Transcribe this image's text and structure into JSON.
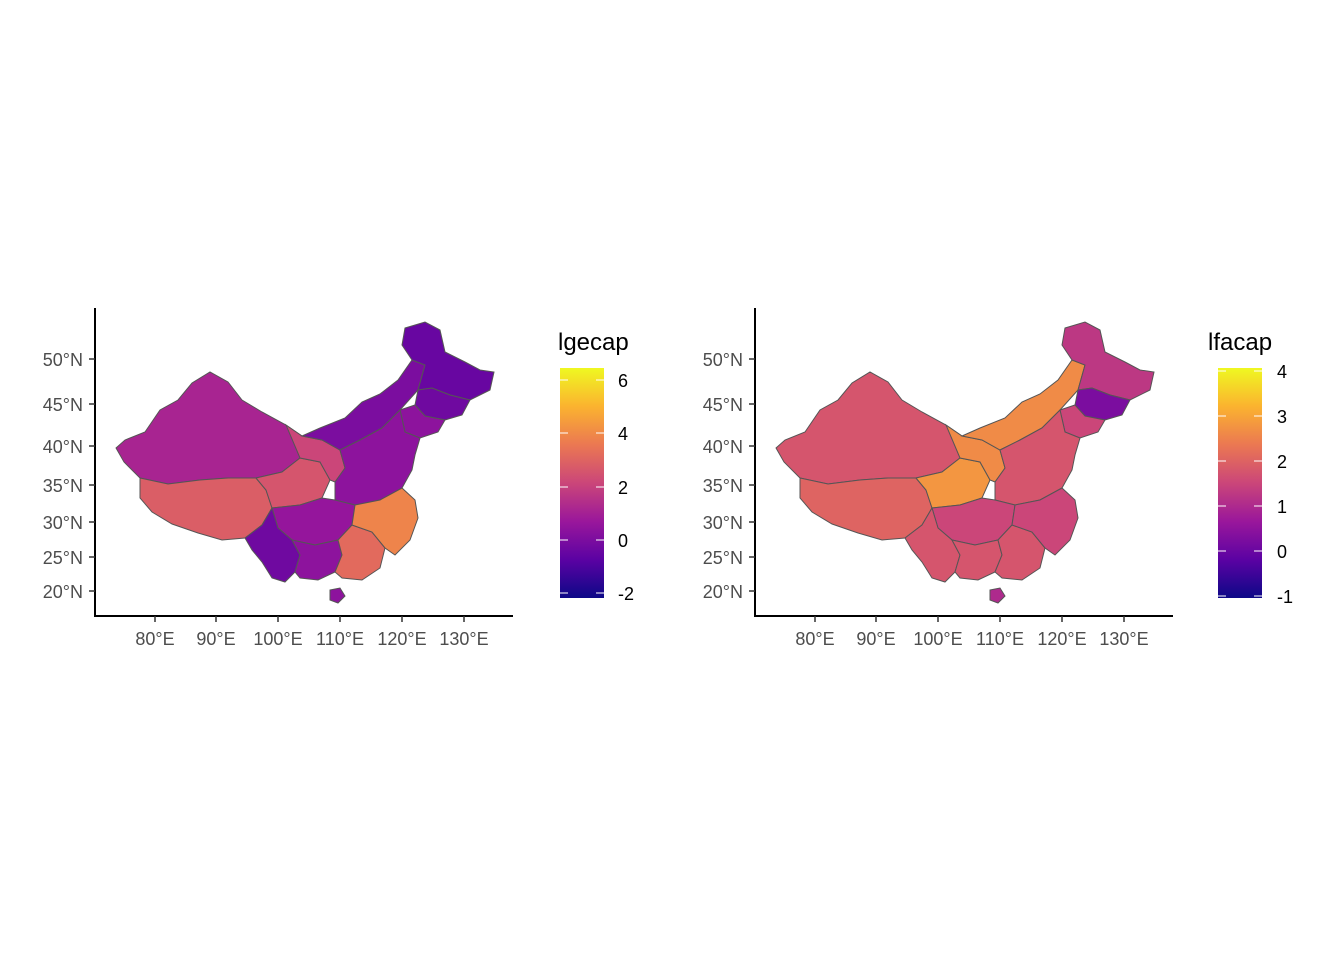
{
  "colors": {
    "scale": [
      "#0d0887",
      "#5b02a3",
      "#9a179b",
      "#cb4679",
      "#eb7852",
      "#fbb32f",
      "#eff821"
    ],
    "border": "#555555",
    "axis": "#000000",
    "tick_text": "#4d4d4d"
  },
  "maps": [
    {
      "legend": {
        "title": "lgecap",
        "ticks": [
          "6",
          "4",
          "2",
          "0",
          "-2"
        ]
      },
      "x_ticks": [
        "80°E",
        "90°E",
        "100°E",
        "110°E",
        "120°E",
        "130°E"
      ],
      "y_ticks": [
        "50°N",
        "45°N",
        "40°N",
        "35°N",
        "30°N",
        "25°N",
        "20°N"
      ],
      "regions": {
        "Xinjiang": 0.38,
        "Tibet": 0.58,
        "Qinghai": 0.55,
        "Gansu": 0.5,
        "InnerMongolia": 0.25,
        "Heilongjiang": 0.2,
        "Jilin": 0.22,
        "Liaoning": 0.3,
        "NorthChina": 0.3,
        "Sichuan": 0.32,
        "Yunnan": 0.22,
        "Guangxi": 0.3,
        "Guangdong": 0.62,
        "Southeast": 0.7,
        "Hainan": 0.3
      }
    },
    {
      "legend": {
        "title": "lfacap",
        "ticks": [
          "4",
          "3",
          "2",
          "1",
          "0",
          "-1"
        ]
      },
      "x_ticks": [
        "80°E",
        "90°E",
        "100°E",
        "110°E",
        "120°E",
        "130°E"
      ],
      "y_ticks": [
        "50°N",
        "45°N",
        "40°N",
        "35°N",
        "30°N",
        "25°N",
        "20°N"
      ],
      "regions": {
        "Xinjiang": 0.55,
        "Tibet": 0.6,
        "Qinghai": 0.75,
        "Gansu": 0.72,
        "InnerMongolia": 0.72,
        "Heilongjiang": 0.45,
        "Jilin": 0.25,
        "Liaoning": 0.5,
        "NorthChina": 0.55,
        "Sichuan": 0.5,
        "Yunnan": 0.55,
        "Guangxi": 0.55,
        "Guangdong": 0.55,
        "Southeast": 0.5,
        "Hainan": 0.4
      }
    }
  ]
}
